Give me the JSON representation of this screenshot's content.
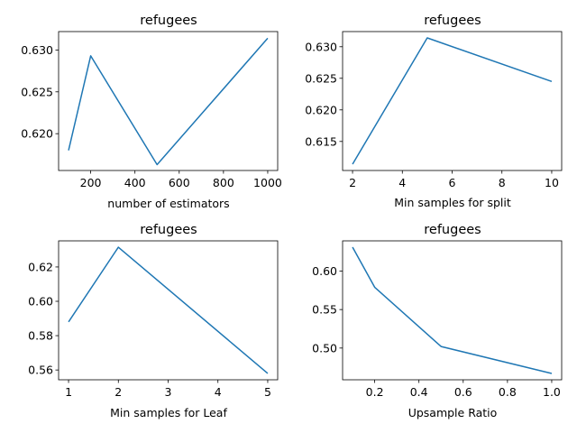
{
  "chart_data": [
    {
      "type": "line",
      "title": "refugees",
      "xlabel": "number of estimators",
      "ylabel": "",
      "x": [
        100,
        200,
        500,
        1000
      ],
      "series": [
        {
          "values": [
            0.618,
            0.6293,
            0.6163,
            0.6314
          ],
          "color": "#1f77b4"
        }
      ],
      "xlim": [
        55,
        1045
      ],
      "ylim": [
        0.6156,
        0.6322
      ],
      "xticks": [
        200,
        400,
        600,
        800,
        1000
      ],
      "xtick_labels": [
        "200",
        "400",
        "600",
        "800",
        "1000"
      ],
      "yticks": [
        0.62,
        0.625,
        0.63
      ],
      "ytick_labels": [
        "0.620",
        "0.625",
        "0.630"
      ]
    },
    {
      "type": "line",
      "title": "refugees",
      "xlabel": "Min samples for split",
      "ylabel": "",
      "x": [
        2,
        5,
        10
      ],
      "series": [
        {
          "values": [
            0.6114,
            0.6314,
            0.6245
          ],
          "color": "#1f77b4"
        }
      ],
      "xlim": [
        1.6,
        10.4
      ],
      "ylim": [
        0.6104,
        0.6324
      ],
      "xticks": [
        2,
        4,
        6,
        8,
        10
      ],
      "xtick_labels": [
        "2",
        "4",
        "6",
        "8",
        "10"
      ],
      "yticks": [
        0.615,
        0.62,
        0.625,
        0.63
      ],
      "ytick_labels": [
        "0.615",
        "0.620",
        "0.625",
        "0.630"
      ]
    },
    {
      "type": "line",
      "title": "refugees",
      "xlabel": "Min samples for Leaf",
      "ylabel": "",
      "x": [
        1,
        2,
        5
      ],
      "series": [
        {
          "values": [
            0.588,
            0.6315,
            0.558
          ],
          "color": "#1f77b4"
        }
      ],
      "xlim": [
        0.8,
        5.2
      ],
      "ylim": [
        0.5543,
        0.6352
      ],
      "xticks": [
        1,
        2,
        3,
        4,
        5
      ],
      "xtick_labels": [
        "1",
        "2",
        "3",
        "4",
        "5"
      ],
      "yticks": [
        0.56,
        0.58,
        0.6,
        0.62
      ],
      "ytick_labels": [
        "0.56",
        "0.58",
        "0.60",
        "0.62"
      ]
    },
    {
      "type": "line",
      "title": "refugees",
      "xlabel": "Upsample Ratio",
      "ylabel": "",
      "x": [
        0.1,
        0.2,
        0.5,
        1.0
      ],
      "series": [
        {
          "values": [
            0.631,
            0.579,
            0.502,
            0.467
          ],
          "color": "#1f77b4"
        }
      ],
      "xlim": [
        0.055,
        1.045
      ],
      "ylim": [
        0.4588,
        0.6392
      ],
      "xticks": [
        0.2,
        0.4,
        0.6,
        0.8,
        1.0
      ],
      "xtick_labels": [
        "0.2",
        "0.4",
        "0.6",
        "0.8",
        "1.0"
      ],
      "yticks": [
        0.5,
        0.55,
        0.6
      ],
      "ytick_labels": [
        "0.50",
        "0.55",
        "0.60"
      ]
    }
  ]
}
